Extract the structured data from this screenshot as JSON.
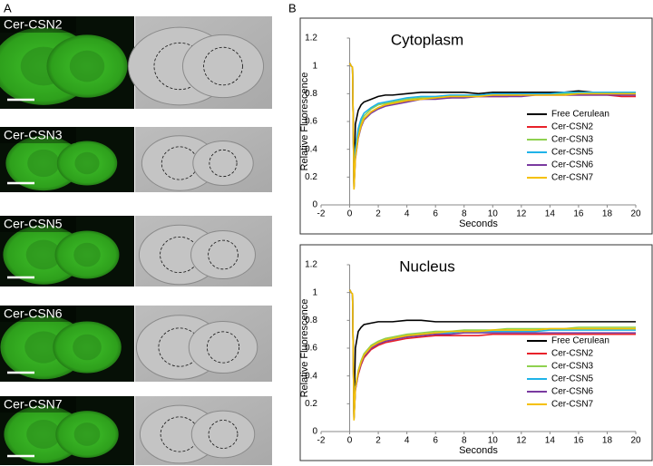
{
  "panel_labels": [
    "A",
    "B"
  ],
  "images": [
    "Cer-CSN2",
    "Cer-CSN3",
    "Cer-CSN5",
    "Cer-CSN6",
    "Cer-CSN7"
  ],
  "chart_data": [
    {
      "type": "line",
      "title": "Cytoplasm",
      "x_label": "Seconds",
      "y_label": "Relative Fluorescence",
      "xlim": [
        -2,
        20
      ],
      "xticks": [
        -2,
        0,
        2,
        4,
        6,
        8,
        10,
        12,
        14,
        16,
        18,
        20
      ],
      "ylim": [
        0,
        1.2
      ],
      "yticks": [
        0,
        0.2,
        0.4,
        0.6,
        0.8,
        1,
        1.2
      ],
      "grid": false,
      "legend": "lower right",
      "x": [
        0,
        0.1,
        0.2,
        0.3,
        0.4,
        0.6,
        0.8,
        1,
        1.5,
        2,
        2.5,
        3,
        4,
        5,
        6,
        7,
        8,
        9,
        10,
        11,
        12,
        13,
        14,
        15,
        16,
        17,
        18,
        19,
        20
      ],
      "series": [
        {
          "name": "Free Cerulean",
          "color": "#000000",
          "values": [
            1.02,
            1.0,
            0.99,
            0.15,
            0.58,
            0.68,
            0.72,
            0.74,
            0.76,
            0.78,
            0.79,
            0.79,
            0.8,
            0.81,
            0.81,
            0.81,
            0.81,
            0.8,
            0.81,
            0.81,
            0.81,
            0.81,
            0.81,
            0.81,
            0.82,
            0.81,
            0.81,
            0.81,
            0.81
          ]
        },
        {
          "name": "Cer-CSN2",
          "color": "#e8212a",
          "values": [
            1.02,
            1.0,
            0.99,
            0.13,
            0.35,
            0.5,
            0.57,
            0.62,
            0.67,
            0.7,
            0.72,
            0.73,
            0.75,
            0.76,
            0.77,
            0.77,
            0.78,
            0.78,
            0.78,
            0.78,
            0.79,
            0.79,
            0.79,
            0.79,
            0.79,
            0.79,
            0.79,
            0.78,
            0.78
          ]
        },
        {
          "name": "Cer-CSN3",
          "color": "#8fd14f",
          "values": [
            1.02,
            1.0,
            0.99,
            0.13,
            0.38,
            0.53,
            0.6,
            0.64,
            0.69,
            0.72,
            0.73,
            0.74,
            0.76,
            0.77,
            0.77,
            0.78,
            0.78,
            0.79,
            0.79,
            0.79,
            0.8,
            0.8,
            0.8,
            0.8,
            0.8,
            0.8,
            0.8,
            0.8,
            0.8
          ]
        },
        {
          "name": "Cer-CSN5",
          "color": "#1fb3e8",
          "values": [
            1.02,
            1.0,
            0.99,
            0.14,
            0.4,
            0.55,
            0.62,
            0.66,
            0.7,
            0.73,
            0.74,
            0.75,
            0.77,
            0.78,
            0.78,
            0.79,
            0.79,
            0.79,
            0.8,
            0.8,
            0.8,
            0.8,
            0.8,
            0.81,
            0.81,
            0.81,
            0.81,
            0.81,
            0.81
          ]
        },
        {
          "name": "Cer-CSN6",
          "color": "#7a3aa0",
          "values": [
            1.02,
            1.0,
            0.99,
            0.12,
            0.33,
            0.48,
            0.56,
            0.61,
            0.66,
            0.69,
            0.71,
            0.72,
            0.74,
            0.76,
            0.76,
            0.77,
            0.77,
            0.78,
            0.78,
            0.78,
            0.78,
            0.79,
            0.79,
            0.79,
            0.79,
            0.79,
            0.79,
            0.79,
            0.79
          ]
        },
        {
          "name": "Cer-CSN7",
          "color": "#f5c000",
          "values": [
            1.02,
            1.0,
            0.99,
            0.11,
            0.34,
            0.49,
            0.57,
            0.62,
            0.67,
            0.7,
            0.72,
            0.73,
            0.75,
            0.76,
            0.77,
            0.78,
            0.78,
            0.78,
            0.79,
            0.79,
            0.79,
            0.79,
            0.79,
            0.79,
            0.8,
            0.8,
            0.8,
            0.8,
            0.8
          ]
        }
      ]
    },
    {
      "type": "line",
      "title": "Nucleus",
      "x_label": "Seconds",
      "y_label": "Relative Fluorescence",
      "xlim": [
        -2,
        20
      ],
      "xticks": [
        -2,
        0,
        2,
        4,
        6,
        8,
        10,
        12,
        14,
        16,
        18,
        20
      ],
      "ylim": [
        0,
        1.2
      ],
      "yticks": [
        0,
        0.2,
        0.4,
        0.6,
        0.8,
        1,
        1.2
      ],
      "grid": false,
      "legend": "lower right",
      "x": [
        0,
        0.1,
        0.2,
        0.3,
        0.4,
        0.6,
        0.8,
        1,
        1.5,
        2,
        2.5,
        3,
        4,
        5,
        6,
        7,
        8,
        9,
        10,
        11,
        12,
        13,
        14,
        15,
        16,
        17,
        18,
        19,
        20
      ],
      "series": [
        {
          "name": "Free Cerulean",
          "color": "#000000",
          "values": [
            1.02,
            1.0,
            0.99,
            0.12,
            0.6,
            0.72,
            0.75,
            0.77,
            0.78,
            0.79,
            0.79,
            0.79,
            0.8,
            0.8,
            0.79,
            0.79,
            0.79,
            0.79,
            0.79,
            0.79,
            0.79,
            0.79,
            0.79,
            0.79,
            0.79,
            0.79,
            0.79,
            0.79,
            0.79
          ]
        },
        {
          "name": "Cer-CSN2",
          "color": "#e8212a",
          "values": [
            1.02,
            1.0,
            0.99,
            0.1,
            0.3,
            0.41,
            0.48,
            0.53,
            0.59,
            0.62,
            0.64,
            0.65,
            0.67,
            0.68,
            0.69,
            0.69,
            0.69,
            0.69,
            0.7,
            0.7,
            0.7,
            0.7,
            0.7,
            0.7,
            0.7,
            0.7,
            0.7,
            0.7,
            0.7
          ]
        },
        {
          "name": "Cer-CSN3",
          "color": "#8fd14f",
          "values": [
            1.02,
            1.0,
            0.99,
            0.1,
            0.32,
            0.44,
            0.51,
            0.56,
            0.62,
            0.65,
            0.67,
            0.68,
            0.7,
            0.71,
            0.72,
            0.72,
            0.73,
            0.73,
            0.73,
            0.74,
            0.74,
            0.74,
            0.74,
            0.74,
            0.75,
            0.75,
            0.75,
            0.75,
            0.75
          ]
        },
        {
          "name": "Cer-CSN5",
          "color": "#1fb3e8",
          "values": [
            1.02,
            1.0,
            0.99,
            0.1,
            0.31,
            0.43,
            0.5,
            0.55,
            0.61,
            0.64,
            0.66,
            0.67,
            0.69,
            0.7,
            0.71,
            0.71,
            0.72,
            0.72,
            0.72,
            0.72,
            0.72,
            0.72,
            0.73,
            0.73,
            0.73,
            0.73,
            0.73,
            0.73,
            0.73
          ]
        },
        {
          "name": "Cer-CSN6",
          "color": "#7a3aa0",
          "values": [
            1.02,
            1.0,
            0.99,
            0.09,
            0.3,
            0.42,
            0.49,
            0.54,
            0.6,
            0.63,
            0.65,
            0.66,
            0.68,
            0.69,
            0.7,
            0.7,
            0.71,
            0.71,
            0.71,
            0.71,
            0.71,
            0.71,
            0.71,
            0.71,
            0.71,
            0.71,
            0.71,
            0.71,
            0.71
          ]
        },
        {
          "name": "Cer-CSN7",
          "color": "#f5c000",
          "values": [
            1.02,
            1.0,
            0.99,
            0.08,
            0.31,
            0.43,
            0.5,
            0.55,
            0.61,
            0.64,
            0.66,
            0.67,
            0.69,
            0.7,
            0.71,
            0.72,
            0.72,
            0.72,
            0.73,
            0.73,
            0.73,
            0.73,
            0.74,
            0.74,
            0.74,
            0.74,
            0.74,
            0.74,
            0.74
          ]
        }
      ]
    }
  ]
}
